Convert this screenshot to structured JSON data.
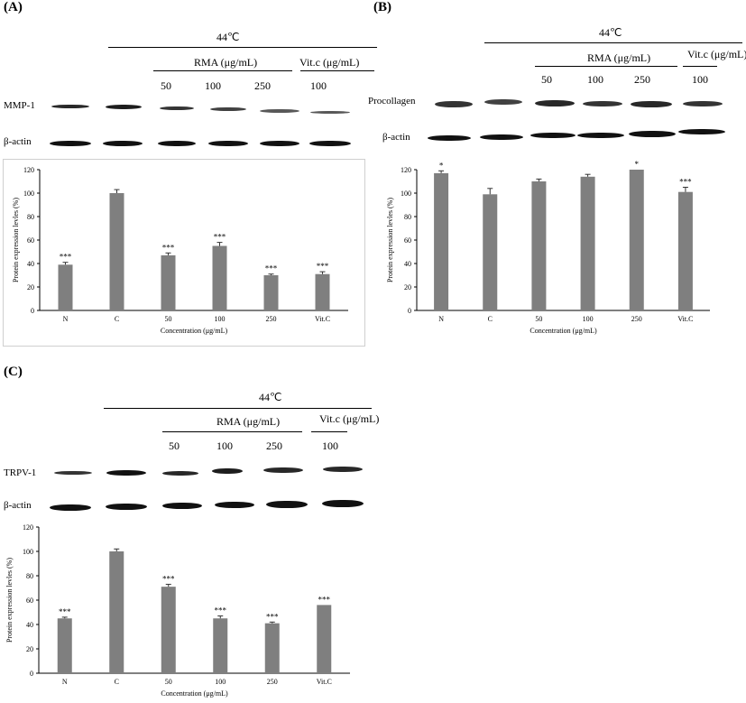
{
  "panels": [
    {
      "label": "(A)",
      "temp_header": "44℃",
      "group_rma": "RMA (μg/mL)",
      "group_vitc": "Vit.c (μg/mL)",
      "doses": [
        "50",
        "100",
        "250",
        "100"
      ],
      "blot_rows": [
        "MMP-1",
        "β-actin"
      ]
    },
    {
      "label": "(B)",
      "temp_header": "44℃",
      "group_rma": "RMA (μg/mL)",
      "group_vitc": "Vit.c (μg/mL)",
      "doses": [
        "50",
        "100",
        "250",
        "100"
      ],
      "blot_rows": [
        "Procollagen",
        "β-actin"
      ]
    },
    {
      "label": "(C)",
      "temp_header": "44℃",
      "group_rma": "RMA (μg/mL)",
      "group_vitc": "Vit.c (μg/mL)",
      "doses": [
        "50",
        "100",
        "250",
        "100"
      ],
      "blot_rows": [
        "TRPV-1",
        "β-actin"
      ]
    }
  ],
  "chart_data": [
    {
      "type": "bar",
      "categories": [
        "N",
        "C",
        "50",
        "100",
        "250",
        "Vit.C"
      ],
      "values": [
        39,
        100,
        47,
        55,
        30,
        31
      ],
      "errors": [
        2,
        3,
        2,
        3,
        1,
        2
      ],
      "significance": [
        "***",
        "",
        "***",
        "***",
        "***",
        "***"
      ],
      "xlabel": "Concentration (μg/mL)",
      "ylabel": "Protein expression levles (%)",
      "ylim": [
        0,
        120
      ],
      "yticks": [
        "0",
        "20",
        "40",
        "60",
        "80",
        "100",
        "120"
      ],
      "bar_color": "#7f7f7f",
      "framed": true
    },
    {
      "type": "bar",
      "categories": [
        "N",
        "C",
        "50",
        "100",
        "250",
        "Vit.C"
      ],
      "values": [
        117,
        99,
        110,
        114,
        120,
        101
      ],
      "errors": [
        2,
        5,
        2,
        2,
        0,
        4
      ],
      "significance": [
        "*",
        "",
        "",
        "",
        "*",
        "***"
      ],
      "xlabel": "Concentration (μg/mL)",
      "ylabel": "Protein expression levles (%)",
      "ylim": [
        0,
        120
      ],
      "yticks": [
        "0",
        "20",
        "40",
        "60",
        "80",
        "100",
        "120"
      ],
      "bar_color": "#7f7f7f",
      "framed": false
    },
    {
      "type": "bar",
      "categories": [
        "N",
        "C",
        "50",
        "100",
        "250",
        "Vit.C"
      ],
      "values": [
        45,
        100,
        71,
        45,
        41,
        56
      ],
      "errors": [
        1,
        2,
        2,
        2,
        1,
        0
      ],
      "significance": [
        "***",
        "",
        "***",
        "***",
        "***",
        "***"
      ],
      "xlabel": "Concentration (μg/mL)",
      "ylabel": "Protein expression levles (%)",
      "ylim": [
        0,
        120
      ],
      "yticks": [
        "0",
        "20",
        "40",
        "60",
        "80",
        "100",
        "120"
      ],
      "bar_color": "#7f7f7f",
      "framed": false
    }
  ]
}
